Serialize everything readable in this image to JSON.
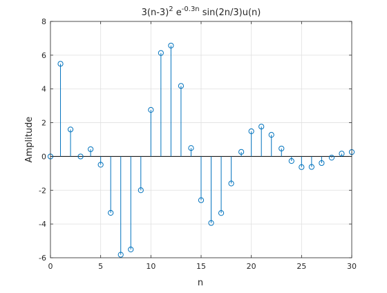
{
  "chart_data": {
    "type": "stem",
    "title": {
      "part1": "3(n-3)",
      "sup1": "2",
      "part2": " e",
      "sup2": "-0.3n",
      "part3": " sin(2n/3)u(n)"
    },
    "xlabel": "n",
    "ylabel": "Amplitude",
    "xlim": [
      0,
      30
    ],
    "ylim": [
      -6,
      8
    ],
    "xticks": [
      0,
      5,
      10,
      15,
      20,
      25,
      30
    ],
    "yticks": [
      -6,
      -4,
      -2,
      0,
      2,
      4,
      6,
      8
    ],
    "grid": true,
    "color": "#0072bd",
    "series": [
      {
        "x": [
          0,
          1,
          2,
          3,
          4,
          5,
          6,
          7,
          8,
          9,
          10,
          11,
          12,
          13,
          14,
          15,
          16,
          17,
          18,
          19,
          20,
          21,
          22,
          23,
          24,
          25,
          26,
          27,
          28,
          29,
          30
        ],
        "values": [
          0,
          5.49,
          1.6,
          0,
          0.43,
          -0.49,
          -3.34,
          -5.82,
          -5.51,
          -2.0,
          2.76,
          6.13,
          6.57,
          4.18,
          0.5,
          -2.59,
          -3.94,
          -3.35,
          -1.6,
          0.27,
          1.49,
          1.77,
          1.28,
          0.47,
          -0.27,
          -0.63,
          -0.62,
          -0.39,
          -0.07,
          0.17,
          0.26
        ]
      }
    ]
  }
}
